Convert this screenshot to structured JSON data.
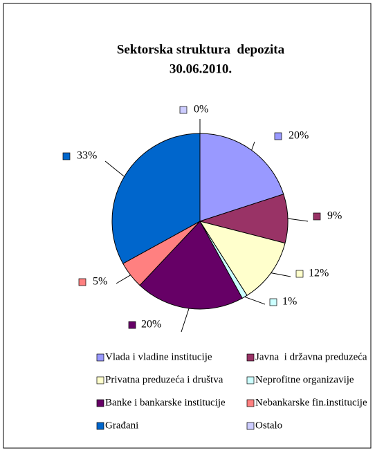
{
  "chart_data": {
    "type": "pie",
    "title": "Sektorska struktura  depozita",
    "subtitle": "30.06.2010.",
    "categories": [
      "Vlada i vladine institucije",
      "Javna  i državna preduzeća",
      "Privatna preduzeća i društva",
      "Neprofitne organizavije",
      "Banke i bankarske institucije",
      "Nebankarske fin.institucije",
      "Građani",
      "Ostalo"
    ],
    "values": [
      20,
      9,
      12,
      1,
      20,
      5,
      33,
      0
    ],
    "value_labels": [
      "20%",
      "9%",
      "12%",
      "1%",
      "20%",
      "5%",
      "33%",
      "0%"
    ],
    "colors": [
      "#9999FF",
      "#993366",
      "#FFFFCC",
      "#CCFFFF",
      "#660066",
      "#FF8080",
      "#0066CC",
      "#CCCCFF"
    ],
    "legend": "bottom"
  }
}
